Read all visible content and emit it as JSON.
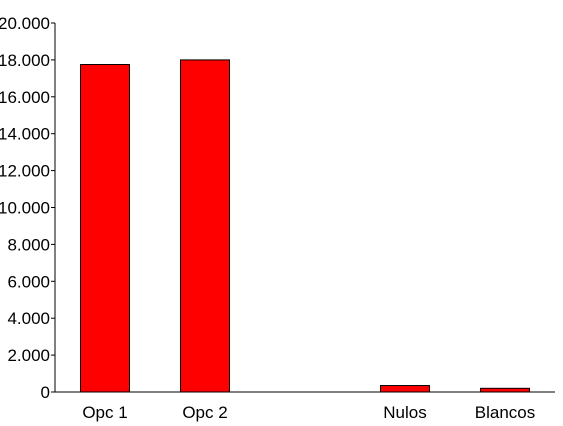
{
  "chart_data": {
    "type": "bar",
    "categories": [
      "Opc 1",
      "Opc 2",
      "",
      "Nulos",
      "Blancos"
    ],
    "values": [
      17750,
      18000,
      0,
      350,
      200
    ],
    "ylim": [
      0,
      20000
    ],
    "yticks": [
      0,
      2000,
      4000,
      6000,
      8000,
      10000,
      12000,
      14000,
      16000,
      18000,
      20000
    ],
    "ytick_labels": [
      "0",
      "2.000",
      "4.000",
      "6.000",
      "8.000",
      "10.000",
      "12.000",
      "14.000",
      "16.000",
      "18.000",
      "20.000"
    ],
    "grid": false,
    "legend": "none",
    "bar_color": "#ff0000",
    "bar_edge_color": "#000000",
    "axis_color": "#000000"
  }
}
